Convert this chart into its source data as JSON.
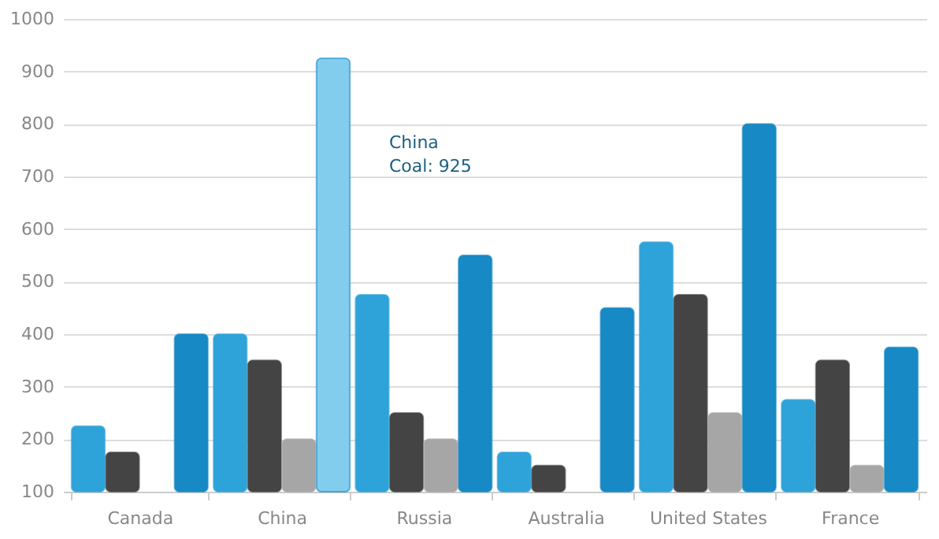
{
  "chart_data": {
    "type": "bar",
    "categories": [
      "Canada",
      "China",
      "Russia",
      "Australia",
      "United States",
      "France"
    ],
    "series": [
      {
        "color": "#2ea3d9",
        "values": [
          225,
          400,
          475,
          175,
          575,
          275
        ]
      },
      {
        "color": "#444444",
        "values": [
          175,
          350,
          250,
          150,
          475,
          350
        ]
      },
      {
        "color": "#a6a6a6",
        "values": [
          null,
          200,
          200,
          null,
          250,
          150
        ]
      },
      {
        "color": "#1789c4",
        "colors": [
          "#1789c4",
          "#82cdee",
          "#1789c4",
          "#1789c4",
          "#1789c4",
          "#1789c4"
        ],
        "values": [
          400,
          925,
          550,
          450,
          800,
          375
        ]
      }
    ],
    "ylim": [
      100,
      1000
    ],
    "yticks": [
      100,
      200,
      300,
      400,
      500,
      600,
      700,
      800,
      900,
      1000
    ],
    "grid": "y",
    "annotations": [
      "China\nCoal: 925"
    ]
  }
}
